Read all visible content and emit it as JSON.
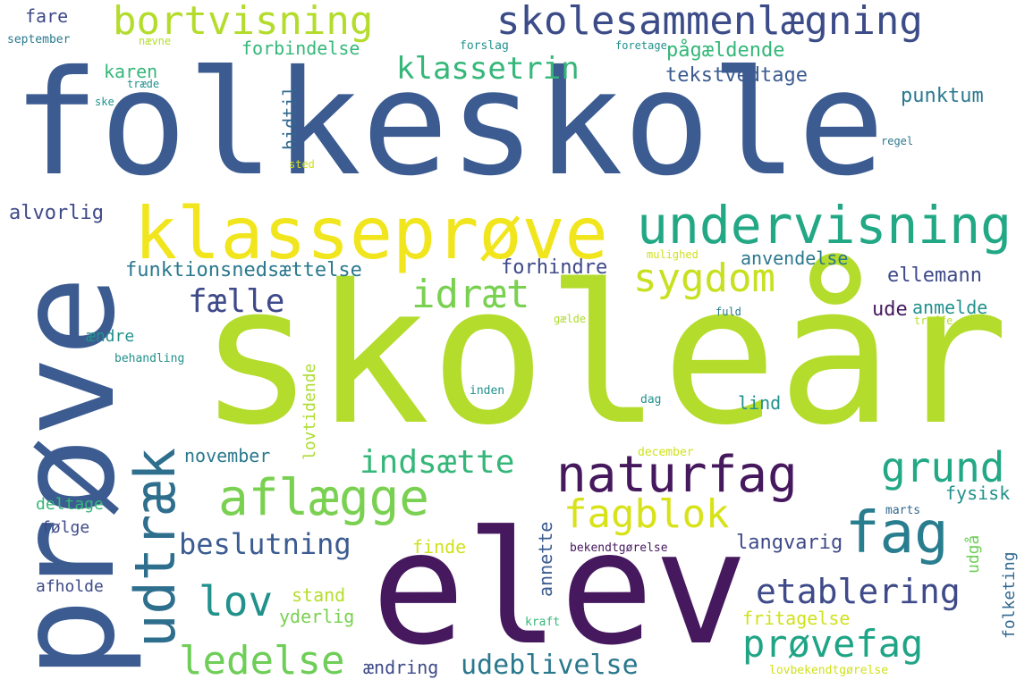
{
  "words": [
    {
      "text": "folkeskole",
      "color": "#3b5b91"
    },
    {
      "text": "skoleår",
      "color": "#b4dc2c"
    },
    {
      "text": "elev",
      "color": "#46195e"
    },
    {
      "text": "prøve",
      "color": "#3b5b91"
    },
    {
      "text": "klasseprøve",
      "color": "#f1e51d"
    },
    {
      "text": "udtræk",
      "color": "#2f6f8e"
    },
    {
      "text": "skolesammenlægning",
      "color": "#3b4c88"
    },
    {
      "text": "bortvisning",
      "color": "#b4dc2c"
    },
    {
      "text": "undervisning",
      "color": "#22a884"
    },
    {
      "text": "naturfag",
      "color": "#46195e"
    },
    {
      "text": "aflægge",
      "color": "#7ad151"
    },
    {
      "text": "fag",
      "color": "#287d8e"
    },
    {
      "text": "sygdom",
      "color": "#c8e020"
    },
    {
      "text": "idræt",
      "color": "#7ad151"
    },
    {
      "text": "grund",
      "color": "#22a884"
    },
    {
      "text": "fagblok",
      "color": "#d8e219"
    },
    {
      "text": "indsætte",
      "color": "#35b779"
    },
    {
      "text": "etablering",
      "color": "#3e4a89"
    },
    {
      "text": "prøvefag",
      "color": "#20a486"
    },
    {
      "text": "ledelse",
      "color": "#6ece58"
    },
    {
      "text": "lov",
      "color": "#21918c"
    },
    {
      "text": "fælle",
      "color": "#3e4a89"
    },
    {
      "text": "beslutning",
      "color": "#3b5b91"
    },
    {
      "text": "klassetrin",
      "color": "#35b779"
    },
    {
      "text": "udeblivelse",
      "color": "#2a788e"
    },
    {
      "text": "anvendelse",
      "color": "#2a788e"
    },
    {
      "text": "funktionsnedsættelse",
      "color": "#2a788e"
    },
    {
      "text": "forhindre",
      "color": "#3e4a89"
    },
    {
      "text": "alvorlig",
      "color": "#3e4a89"
    },
    {
      "text": "ellemann",
      "color": "#3e4a89"
    },
    {
      "text": "langvarig",
      "color": "#3e4a89"
    },
    {
      "text": "tekstvedtage",
      "color": "#3b5b91"
    },
    {
      "text": "punktum",
      "color": "#2a788e"
    },
    {
      "text": "pågældende",
      "color": "#35b779"
    },
    {
      "text": "forbindelse",
      "color": "#35b779"
    },
    {
      "text": "karen",
      "color": "#35b779"
    },
    {
      "text": "hidtil",
      "color": "#31688e"
    },
    {
      "text": "lovtidende",
      "color": "#addc30"
    },
    {
      "text": "annette",
      "color": "#3b5b91"
    },
    {
      "text": "folketing",
      "color": "#31688e"
    },
    {
      "text": "udgå",
      "color": "#6ece58"
    },
    {
      "text": "november",
      "color": "#2a788e"
    },
    {
      "text": "lind",
      "color": "#21918c"
    },
    {
      "text": "fritagelse",
      "color": "#d0e11c"
    },
    {
      "text": "stand",
      "color": "#b5de2b"
    },
    {
      "text": "yderlig",
      "color": "#7ad151"
    },
    {
      "text": "ændring",
      "color": "#3e4a89"
    },
    {
      "text": "finde",
      "color": "#d0e11c"
    },
    {
      "text": "fysisk",
      "color": "#21918c"
    },
    {
      "text": "ude",
      "color": "#46195e"
    },
    {
      "text": "anmelde",
      "color": "#21918c"
    },
    {
      "text": "ændre",
      "color": "#21918c"
    },
    {
      "text": "deltage",
      "color": "#35b779"
    },
    {
      "text": "følge",
      "color": "#3e4a89"
    },
    {
      "text": "afholde",
      "color": "#3e4a89"
    },
    {
      "text": "fare",
      "color": "#3e4a89"
    },
    {
      "text": "september",
      "color": "#2a788e"
    },
    {
      "text": "nævne",
      "color": "#b5de2b"
    },
    {
      "text": "forslag",
      "color": "#21918c"
    },
    {
      "text": "foretage",
      "color": "#21918c"
    },
    {
      "text": "træde",
      "color": "#21918c"
    },
    {
      "text": "ske",
      "color": "#21918c"
    },
    {
      "text": "regel",
      "color": "#2a788e"
    },
    {
      "text": "sted",
      "color": "#d0e11c"
    },
    {
      "text": "mulighed",
      "color": "#d0e11c"
    },
    {
      "text": "fuld",
      "color": "#2a788e"
    },
    {
      "text": "gælde",
      "color": "#addc30"
    },
    {
      "text": "træffe",
      "color": "#b5de2b"
    },
    {
      "text": "behandling",
      "color": "#21918c"
    },
    {
      "text": "inden",
      "color": "#21918c"
    },
    {
      "text": "dag",
      "color": "#21918c"
    },
    {
      "text": "december",
      "color": "#d0e11c"
    },
    {
      "text": "marts",
      "color": "#31688e"
    },
    {
      "text": "bekendtgørelse",
      "color": "#46195e"
    },
    {
      "text": "kraft",
      "color": "#35b779"
    },
    {
      "text": "lovbekendtgørelse",
      "color": "#d0e11c"
    }
  ]
}
